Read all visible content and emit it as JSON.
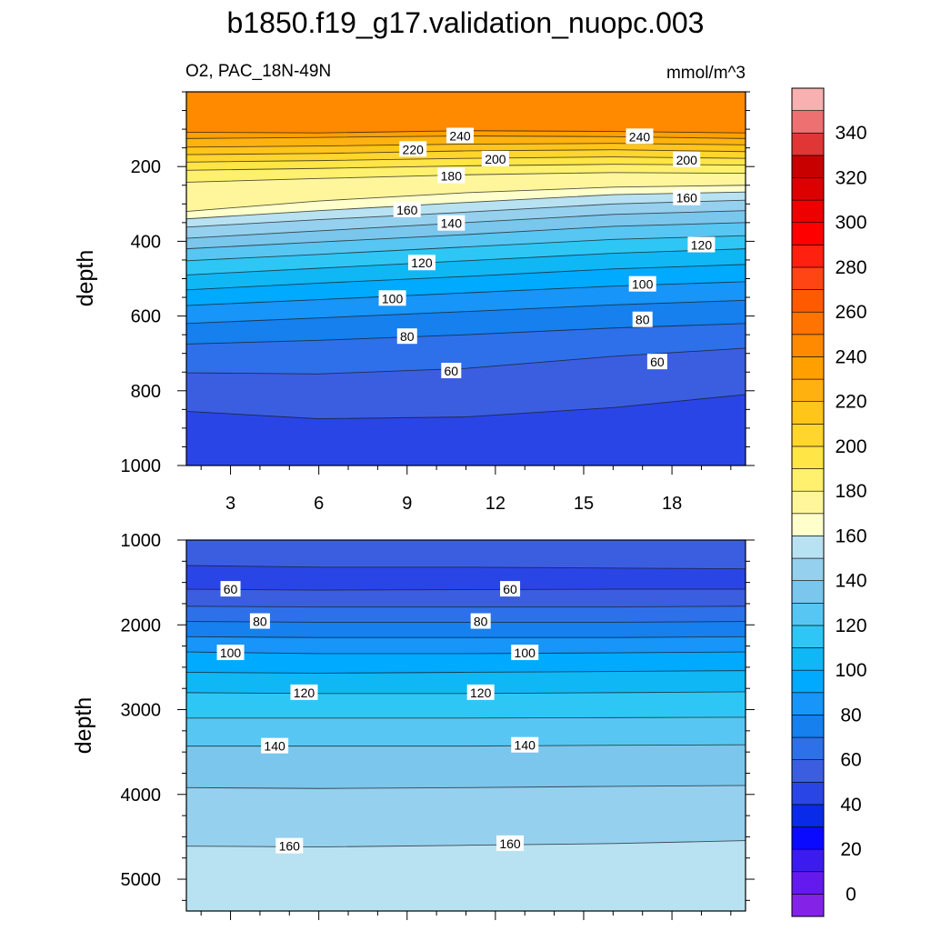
{
  "title": "b1850.f19_g17.validation_nuopc.003",
  "chart_data": {
    "type": "heatmap",
    "variable_label": "O2, PAC_18N-49N",
    "units": "mmol/m^3",
    "x_tick_labels": [
      "3",
      "6",
      "9",
      "12",
      "15",
      "18"
    ],
    "x_ticks": [
      3,
      6,
      9,
      12,
      15,
      18
    ],
    "xlim": [
      1.5,
      20.5
    ],
    "ylabel": "depth",
    "colorbar": {
      "levels": [
        0,
        10,
        20,
        30,
        40,
        50,
        60,
        70,
        80,
        90,
        100,
        110,
        120,
        130,
        140,
        150,
        160,
        170,
        180,
        190,
        200,
        210,
        220,
        230,
        240,
        250,
        260,
        270,
        280,
        290,
        300,
        310,
        320,
        330,
        340,
        350
      ],
      "tick_labels": [
        "0",
        "20",
        "40",
        "60",
        "80",
        "100",
        "120",
        "140",
        "160",
        "180",
        "200",
        "220",
        "240",
        "260",
        "280",
        "300",
        "320",
        "340"
      ],
      "colors": [
        "#8522e8",
        "#6419ee",
        "#3c1bf1",
        "#0a0aff",
        "#0a2ae9",
        "#2a45e6",
        "#3b5ee0",
        "#2e70e9",
        "#1580ee",
        "#1795f8",
        "#00aaff",
        "#10b7f5",
        "#2ec7f5",
        "#58c6f2",
        "#7bc6ec",
        "#96d0ef",
        "#b8e2f2",
        "#ffffcc",
        "#fff69c",
        "#fff06e",
        "#ffe545",
        "#ffd52e",
        "#ffc51a",
        "#ffb20f",
        "#ff9f00",
        "#ff8a00",
        "#ff7300",
        "#ff5a00",
        "#ff4513",
        "#ff2010",
        "#ff0000",
        "#ee0000",
        "#dd0000",
        "#c80000",
        "#e03636",
        "#ee7070",
        "#f8b0b0"
      ]
    },
    "panels": [
      {
        "name": "upper",
        "ylim": [
          0,
          1000
        ],
        "y_ticks": [
          200,
          400,
          600,
          800,
          1000
        ],
        "y_tick_labels": [
          "200",
          "400",
          "600",
          "800",
          "1000"
        ],
        "contour_lines": [
          {
            "value": 240,
            "x": [
              1.5,
              6,
              11,
              16,
              20.5
            ],
            "depth": [
              108,
              110,
              104,
              106,
              110
            ]
          },
          {
            "value": 230,
            "x": [
              1.5,
              6,
              11,
              16,
              20.5
            ],
            "depth": [
              125,
              122,
              118,
              120,
              125
            ]
          },
          {
            "value": 220,
            "x": [
              1.5,
              6,
              11,
              16,
              20.5
            ],
            "depth": [
              148,
              145,
              140,
              138,
              142
            ]
          },
          {
            "value": 210,
            "x": [
              1.5,
              6,
              11,
              16,
              20.5
            ],
            "depth": [
              168,
              165,
              158,
              155,
              160
            ]
          },
          {
            "value": 200,
            "x": [
              1.5,
              6,
              11,
              16,
              20.5
            ],
            "depth": [
              188,
              184,
              178,
              174,
              178
            ]
          },
          {
            "value": 190,
            "x": [
              1.5,
              6,
              11,
              16,
              20.5
            ],
            "depth": [
              210,
              205,
              198,
              194,
              196
            ]
          },
          {
            "value": 180,
            "x": [
              1.5,
              6,
              11,
              16,
              20.5
            ],
            "depth": [
              242,
              232,
              222,
              216,
              218
            ]
          },
          {
            "value": 170,
            "x": [
              1.5,
              6,
              11,
              16,
              20.5
            ],
            "depth": [
              320,
              292,
              270,
              255,
              250
            ]
          },
          {
            "value": 160,
            "x": [
              1.5,
              6,
              11,
              16,
              20.5
            ],
            "depth": [
              340,
              318,
              296,
              275,
              268
            ]
          },
          {
            "value": 150,
            "x": [
              1.5,
              6,
              11,
              16,
              20.5
            ],
            "depth": [
              362,
              342,
              322,
              300,
              290
            ]
          },
          {
            "value": 140,
            "x": [
              1.5,
              6,
              11,
              16,
              20.5
            ],
            "depth": [
              392,
              372,
              350,
              328,
              318
            ]
          },
          {
            "value": 130,
            "x": [
              1.5,
              6,
              11,
              16,
              20.5
            ],
            "depth": [
              420,
              402,
              382,
              360,
              350
            ]
          },
          {
            "value": 120,
            "x": [
              1.5,
              6,
              11,
              16,
              20.5
            ],
            "depth": [
              452,
              435,
              415,
              395,
              385
            ]
          },
          {
            "value": 110,
            "x": [
              1.5,
              6,
              11,
              16,
              20.5
            ],
            "depth": [
              490,
              472,
              452,
              432,
              420
            ]
          },
          {
            "value": 100,
            "x": [
              1.5,
              6,
              11,
              16,
              20.5
            ],
            "depth": [
              530,
              512,
              494,
              474,
              462
            ]
          },
          {
            "value": 90,
            "x": [
              1.5,
              6,
              11,
              16,
              20.5
            ],
            "depth": [
              572,
              556,
              538,
              520,
              508
            ]
          },
          {
            "value": 80,
            "x": [
              1.5,
              6,
              11,
              16,
              20.5
            ],
            "depth": [
              620,
              605,
              588,
              570,
              558
            ]
          },
          {
            "value": 70,
            "x": [
              1.5,
              6,
              11,
              16,
              20.5
            ],
            "depth": [
              675,
              665,
              650,
              632,
              620
            ]
          },
          {
            "value": 60,
            "x": [
              1.5,
              6,
              11,
              16,
              20.5
            ],
            "depth": [
              752,
              755,
              740,
              708,
              686
            ]
          },
          {
            "value": 50,
            "x": [
              1.5,
              6,
              11,
              16,
              20.5
            ],
            "depth": [
              855,
              875,
              870,
              845,
              810
            ]
          }
        ],
        "contour_labels": [
          {
            "text": "240",
            "x": 10.8,
            "depth": 118
          },
          {
            "text": "240",
            "x": 16.9,
            "depth": 120
          },
          {
            "text": "220",
            "x": 9.2,
            "depth": 154
          },
          {
            "text": "200",
            "x": 12.0,
            "depth": 180
          },
          {
            "text": "200",
            "x": 18.5,
            "depth": 182
          },
          {
            "text": "180",
            "x": 10.5,
            "depth": 225
          },
          {
            "text": "160",
            "x": 9.0,
            "depth": 316
          },
          {
            "text": "160",
            "x": 18.5,
            "depth": 284
          },
          {
            "text": "140",
            "x": 10.5,
            "depth": 352
          },
          {
            "text": "120",
            "x": 9.5,
            "depth": 458
          },
          {
            "text": "120",
            "x": 19.0,
            "depth": 410
          },
          {
            "text": "100",
            "x": 8.5,
            "depth": 553
          },
          {
            "text": "100",
            "x": 17.0,
            "depth": 515
          },
          {
            "text": "80",
            "x": 9.0,
            "depth": 655
          },
          {
            "text": "80",
            "x": 17.0,
            "depth": 610
          },
          {
            "text": "60",
            "x": 10.5,
            "depth": 747
          },
          {
            "text": "60",
            "x": 17.5,
            "depth": 723
          }
        ]
      },
      {
        "name": "lower",
        "ylim": [
          1000,
          5375
        ],
        "y_ticks": [
          1000,
          2000,
          3000,
          4000,
          5000
        ],
        "y_tick_labels": [
          "1000",
          "2000",
          "3000",
          "4000",
          "5000"
        ],
        "contour_lines": [
          {
            "value": 50,
            "x": [
              1.5,
              6,
              11,
              16,
              20.5
            ],
            "depth": [
              1300,
              1320,
              1320,
              1330,
              1340
            ]
          },
          {
            "value": 60,
            "x": [
              1.5,
              6,
              11,
              16,
              20.5
            ],
            "depth": [
              1580,
              1590,
              1585,
              1580,
              1580
            ]
          },
          {
            "value": 70,
            "x": [
              1.5,
              6,
              11,
              16,
              20.5
            ],
            "depth": [
              1780,
              1790,
              1790,
              1790,
              1780
            ]
          },
          {
            "value": 80,
            "x": [
              1.5,
              6,
              11,
              16,
              20.5
            ],
            "depth": [
              1960,
              1970,
              1970,
              1970,
              1960
            ]
          },
          {
            "value": 90,
            "x": [
              1.5,
              6,
              11,
              16,
              20.5
            ],
            "depth": [
              2140,
              2150,
              2150,
              2150,
              2140
            ]
          },
          {
            "value": 100,
            "x": [
              1.5,
              6,
              11,
              16,
              20.5
            ],
            "depth": [
              2320,
              2340,
              2340,
              2330,
              2320
            ]
          },
          {
            "value": 110,
            "x": [
              1.5,
              6,
              11,
              16,
              20.5
            ],
            "depth": [
              2560,
              2570,
              2560,
              2550,
              2540
            ]
          },
          {
            "value": 120,
            "x": [
              1.5,
              6,
              11,
              16,
              20.5
            ],
            "depth": [
              2800,
              2810,
              2810,
              2800,
              2790
            ]
          },
          {
            "value": 130,
            "x": [
              1.5,
              6,
              11,
              16,
              20.5
            ],
            "depth": [
              3100,
              3100,
              3100,
              3095,
              3090
            ]
          },
          {
            "value": 140,
            "x": [
              1.5,
              6,
              11,
              16,
              20.5
            ],
            "depth": [
              3430,
              3430,
              3430,
              3420,
              3415
            ]
          },
          {
            "value": 150,
            "x": [
              1.5,
              6,
              11,
              16,
              20.5
            ],
            "depth": [
              3920,
              3930,
              3920,
              3905,
              3895
            ]
          },
          {
            "value": 160,
            "x": [
              1.5,
              6,
              11,
              16,
              20.5
            ],
            "depth": [
              4610,
              4620,
              4600,
              4580,
              4545
            ]
          }
        ],
        "contour_labels": [
          {
            "text": "60",
            "x": 3.0,
            "depth": 1580
          },
          {
            "text": "60",
            "x": 12.5,
            "depth": 1580
          },
          {
            "text": "80",
            "x": 4.0,
            "depth": 1960
          },
          {
            "text": "80",
            "x": 11.5,
            "depth": 1960
          },
          {
            "text": "100",
            "x": 3.0,
            "depth": 2330
          },
          {
            "text": "100",
            "x": 13.0,
            "depth": 2330
          },
          {
            "text": "120",
            "x": 5.5,
            "depth": 2800
          },
          {
            "text": "120",
            "x": 11.5,
            "depth": 2800
          },
          {
            "text": "140",
            "x": 4.5,
            "depth": 3430
          },
          {
            "text": "140",
            "x": 13.0,
            "depth": 3420
          },
          {
            "text": "160",
            "x": 5.0,
            "depth": 4610
          },
          {
            "text": "160",
            "x": 12.5,
            "depth": 4580
          }
        ]
      }
    ]
  }
}
